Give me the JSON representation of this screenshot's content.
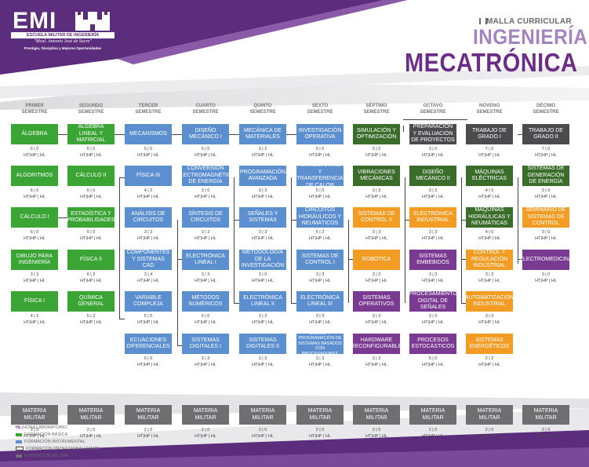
{
  "header": {
    "logo": {
      "acronym": "EMI",
      "name": "ESCUELA MILITAR DE INGENIERÍA",
      "motto": "\"Mcal. Antonio José de Sucre\"",
      "values": "Prestigio, Disciplina y Mejores Oportunidades"
    },
    "malla": "MALLA CURRICULAR",
    "ingenieria": "INGENIERÍA",
    "carrera": "MECATRÓNICA"
  },
  "semesters": [
    {
      "l1": "PRIMER",
      "l2": "SEMESTRE"
    },
    {
      "l1": "SEGUNDO",
      "l2": "SEMESTRE"
    },
    {
      "l1": "TERCER",
      "l2": "SEMESTRE"
    },
    {
      "l1": "CUARTO",
      "l2": "SEMESTRE"
    },
    {
      "l1": "QUINTO",
      "l2": "SEMESTRE"
    },
    {
      "l1": "SEXTO",
      "l2": "SEMESTRE"
    },
    {
      "l1": "SÉPTIMO",
      "l2": "SEMESTRE"
    },
    {
      "l1": "OCTAVO",
      "l2": "SEMESTRE"
    },
    {
      "l1": "NOVENO",
      "l2": "SEMESTRE"
    },
    {
      "l1": "DÉCIMO",
      "l2": "SEMESTRE"
    }
  ],
  "courses": [
    {
      "t": "ÁLGEBRA",
      "h": "6 | 0",
      "c": "basic"
    },
    {
      "t": "ALGORITMOS",
      "h": "6 | 0",
      "c": "basic"
    },
    {
      "t": "CÁLCULO I",
      "h": "6 | 0",
      "c": "basic"
    },
    {
      "t": "DIBUJO PARA INGENIERÍA",
      "h": "3 | 3",
      "c": "basic"
    },
    {
      "t": "FÍSICA I",
      "h": "4 | 2",
      "c": "basic"
    },
    {
      "t": "ÁLGEBRA LINEAL Y MATRICIAL",
      "h": "6 | 0",
      "c": "basic"
    },
    {
      "t": "CÁLCULO II",
      "h": "6 | 0",
      "c": "basic"
    },
    {
      "t": "ESTADÍSTICA Y PROBABILIDADES",
      "h": "5 | 0",
      "c": "basic"
    },
    {
      "t": "FÍSICA II",
      "h": "6 | 2",
      "c": "basic"
    },
    {
      "t": "QUÍMICA GENERAL",
      "h": "5 | 2",
      "c": "basic"
    },
    {
      "t": "MECANISMOS",
      "h": "5 | 0",
      "c": "instr"
    },
    {
      "t": "FÍSICA III",
      "h": "4 | 2",
      "c": "instr"
    },
    {
      "t": "ANÁLISIS DE CIRCUITOS",
      "h": "3 | 3",
      "c": "instr"
    },
    {
      "t": "COMPONENTES Y SISTEMAS CAD",
      "h": "3 | 4",
      "c": "instr"
    },
    {
      "t": "VARIABLE COMPLEJA",
      "h": "5 | 0",
      "c": "instr"
    },
    {
      "t": "ECUACIONES DIFERENCIALES",
      "h": "5 | 0",
      "c": "instr"
    },
    {
      "t": "DISEÑO MECÁNICO I",
      "h": "5 | 0",
      "c": "instr"
    },
    {
      "t": "CONVERSIÓN ELECTROMAGNÉTICA DE ENERGÍA",
      "h": "3 | 0",
      "c": "instr"
    },
    {
      "t": "SÍNTESIS DE CIRCUITOS",
      "h": "3 | 3",
      "c": "instr"
    },
    {
      "t": "ELECTRÓNICA LINEAL I",
      "h": "3 | 3",
      "c": "instr"
    },
    {
      "t": "MÉTODOS NUMÉRICOS",
      "h": "6 | 0",
      "c": "instr"
    },
    {
      "t": "SISTEMAS DIGITALES I",
      "h": "3 | 3",
      "c": "instr"
    },
    {
      "t": "MECÁNICA DE MATERIALES",
      "h": "3 | 2",
      "c": "instr"
    },
    {
      "t": "PROGRAMACIÓN AVANZADA",
      "h": "3 | 3",
      "c": "instr"
    },
    {
      "t": "SEÑALES Y SISTEMAS",
      "h": "3 | 3",
      "c": "instr"
    },
    {
      "t": "METODOLOGÍA DE LA INVESTIGACIÓN",
      "h": "3 | 0",
      "c": "instr"
    },
    {
      "t": "ELECTRÓNICA LINEAL II",
      "h": "3 | 3",
      "c": "instr"
    },
    {
      "t": "SISTEMAS DIGITALES II",
      "h": "3 | 3",
      "c": "instr"
    },
    {
      "t": "INVESTIGACIÓN OPERATIVA",
      "h": "5 | 0",
      "c": "instr"
    },
    {
      "t": "TERMODINÁMICA Y TRANSFERENCIA DE CALOR",
      "h": "5 | 0",
      "c": "instr"
    },
    {
      "t": "CIRCUITOS HIDRÁULICOS Y NEUMÁTICOS",
      "h": "5 | 2",
      "c": "instr"
    },
    {
      "t": "SISTEMAS DE CONTROL I",
      "h": "3 | 3",
      "c": "instr"
    },
    {
      "t": "ELECTRÓNICA LINEAL III",
      "h": "3 | 3",
      "c": "instr"
    },
    {
      "t": "DISEÑO Y PROGRAMACIÓN DE SISTEMAS BASADOS CON PROCESADORES",
      "h": "3 | 3",
      "c": "instr"
    },
    {
      "t": "SIMULACIÓN Y OPTIMIZACIÓN",
      "h": "5 | 0",
      "c": "green"
    },
    {
      "t": "VIBRACIONES MECÁNICAS",
      "h": "3 | 3",
      "c": "green"
    },
    {
      "t": "SISTEMAS DE CONTROL II",
      "h": "3 | 3",
      "c": "prof"
    },
    {
      "t": "ROBÓTICA",
      "h": "3 | 2",
      "c": "prof"
    },
    {
      "t": "SISTEMAS OPERATIVOS",
      "h": "3 | 3",
      "c": "purp"
    },
    {
      "t": "HARDWARE RECONFIGURABLE",
      "h": "3 | 3",
      "c": "purp"
    },
    {
      "t": "PREPARACIÓN Y EVALUACIÓN DE PROYECTOS",
      "h": "3 | 0",
      "c": "dark"
    },
    {
      "t": "DISEÑO MECÁNICO II",
      "h": "3 | 3",
      "c": "green"
    },
    {
      "t": "ELECTRÓNICA INDUSTRIAL",
      "h": "3 | 3",
      "c": "prof"
    },
    {
      "t": "SISTEMAS EMBEBIDOS",
      "h": "3 | 3",
      "c": "purp"
    },
    {
      "t": "PROCESAMIENTO DIGITAL DE SEÑALES",
      "h": "3 | 3",
      "c": "purp"
    },
    {
      "t": "PROCESOS ESTOCÁSTICOS",
      "h": "5 | 0",
      "c": "purp"
    },
    {
      "t": "TRABAJO DE GRADO I",
      "h": "7 | 0",
      "c": "dark"
    },
    {
      "t": "MÁQUINAS ELÉCTRICAS",
      "h": "4 | 0",
      "c": "green"
    },
    {
      "t": "MÁQUINAS HIDRÁULICAS Y NEUMÁTICAS",
      "h": "4 | 0",
      "c": "green"
    },
    {
      "t": "CONTROL Y REGULACIÓN INDUSTRIAL",
      "h": "3 | 3",
      "c": "prof"
    },
    {
      "t": "AUTOMATIZACIÓN INDUSTRIAL",
      "h": "3 | 3",
      "c": "prof"
    },
    {
      "t": "SISTEMAS ENERGÉTICOS",
      "h": "2 | 2",
      "c": "prof"
    },
    {
      "t": "TRABAJO DE GRADO II",
      "h": "7 | 0",
      "c": "dark"
    },
    {
      "t": "SISTEMAS DE GENERACIÓN DE ENERGÍA",
      "h": "3 | 0",
      "c": "green"
    },
    {
      "t": "SEMINARIO DE SISTEMAS DE CONTROL",
      "h": "3 | 0",
      "c": "prof"
    },
    {
      "t": "ELECTROMEDICINA",
      "h": "3 | 0",
      "c": "purp"
    }
  ],
  "hours_label": "HT|HP | HL",
  "military": {
    "t": "MATERIA MILITAR",
    "h": "2 | 0"
  },
  "legend": [
    {
      "code": "HT:",
      "text": " HORA TEÓRICA",
      "color": "#7a3a91"
    },
    {
      "code": "HP:",
      "text": " HORA PRÁCTICA",
      "color": "#7a3a91"
    },
    {
      "code": "HL:",
      "text": " HORA LABORATORIO",
      "color": "#7a3a91"
    },
    {
      "text": "FORMACIÓN BÁSICA",
      "color": "#3aa434"
    },
    {
      "text": "FORMACIÓN INSTRUMENTAL",
      "color": "#5b8fcf"
    },
    {
      "text": "FORMACIÓN PROFESIONALIZANTE",
      "color": "#444444"
    },
    {
      "text": "FORMACIÓN MILITAR",
      "color": "#6f6f71"
    }
  ]
}
